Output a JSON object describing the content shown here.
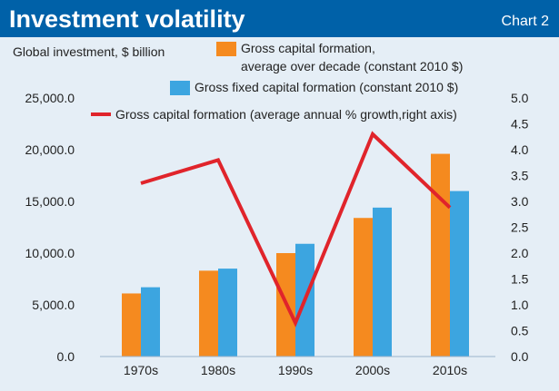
{
  "header": {
    "title": "Investment volatility",
    "chart_label": "Chart 2"
  },
  "colors": {
    "header_bg": "#0061a8",
    "plot_bg": "#e5eef6",
    "orange": "#f58a1f",
    "blue": "#3ca5e0",
    "red": "#e0242b",
    "rule": "#9bb4cc"
  },
  "chart_data": {
    "type": "bar",
    "title": "Investment volatility",
    "ylabel": "Global investment, $ billion",
    "categories": [
      "1970s",
      "1980s",
      "1990s",
      "2000s",
      "2010s"
    ],
    "ylim": [
      0,
      25000
    ],
    "y_ticks": [
      "0.0",
      "5,000.0",
      "10,000.0",
      "15,000.0",
      "20,000.0",
      "25,000.0"
    ],
    "y2lim": [
      0,
      5
    ],
    "y2_ticks": [
      "0.0",
      "0.5",
      "1.0",
      "1.5",
      "2.0",
      "2.5",
      "3.0",
      "3.5",
      "4.0",
      "4.5",
      "5.0"
    ],
    "series": [
      {
        "name": "Gross capital formation, average over decade (constant 2010 $)",
        "legend_lines": [
          "Gross capital formation,",
          "average over decade (constant 2010 $)"
        ],
        "type": "bar",
        "axis": "left",
        "values": [
          6100,
          8300,
          10000,
          13400,
          19600
        ]
      },
      {
        "name": "Gross fixed capital formation (constant 2010 $)",
        "legend_lines": [
          "Gross fixed capital formation (constant 2010 $)"
        ],
        "type": "bar",
        "axis": "left",
        "values": [
          6700,
          8500,
          10900,
          14400,
          16000
        ]
      },
      {
        "name": "Gross capital formation (average annual % growth,right axis)",
        "legend_lines": [
          "Gross capital formation (average annual % growth,right axis)"
        ],
        "type": "line",
        "axis": "right",
        "values": [
          3.35,
          3.8,
          0.65,
          4.3,
          2.88
        ]
      }
    ]
  }
}
